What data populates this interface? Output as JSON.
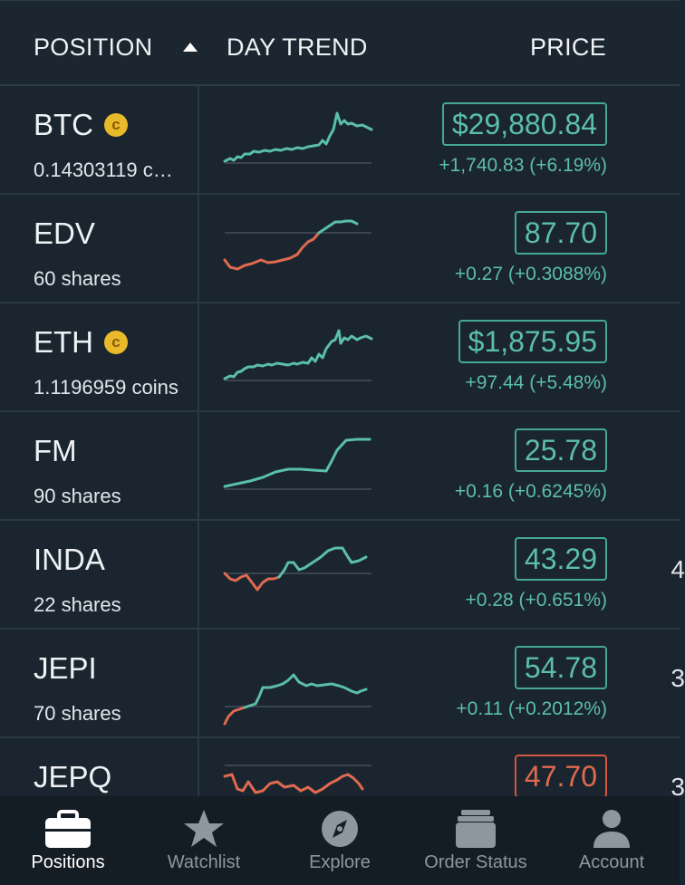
{
  "header": {
    "position_label": "POSITION",
    "day_trend_label": "DAY TREND",
    "price_label": "PRICE"
  },
  "colors": {
    "positive": "#5bbfa8",
    "negative": "#e06a4f",
    "background": "#1b2530",
    "coin_badge": "#e9b92c"
  },
  "positions": [
    {
      "symbol": "BTC",
      "subtitle": "0.14303119 c…",
      "crypto": true,
      "coin_glyph": "c",
      "price": "$29,880.84",
      "change": "+1,740.83 (+6.19%)",
      "direction": "up",
      "edge_text": ""
    },
    {
      "symbol": "EDV",
      "subtitle": "60 shares",
      "crypto": false,
      "price": "87.70",
      "change": "+0.27 (+0.3088%)",
      "direction": "up",
      "edge_text": ""
    },
    {
      "symbol": "ETH",
      "subtitle": "1.1196959 coins",
      "crypto": true,
      "coin_glyph": "c",
      "price": "$1,875.95",
      "change": "+97.44 (+5.48%)",
      "direction": "up",
      "edge_text": ""
    },
    {
      "symbol": "FM",
      "subtitle": "90 shares",
      "crypto": false,
      "price": "25.78",
      "change": "+0.16 (+0.6245%)",
      "direction": "up",
      "edge_text": ""
    },
    {
      "symbol": "INDA",
      "subtitle": "22 shares",
      "crypto": false,
      "price": "43.29",
      "change": "+0.28 (+0.651%)",
      "direction": "up",
      "edge_text": "4"
    },
    {
      "symbol": "JEPI",
      "subtitle": "70 shares",
      "crypto": false,
      "price": "54.78",
      "change": "+0.11 (+0.2012%)",
      "direction": "up",
      "edge_text": "3"
    },
    {
      "symbol": "JEPQ",
      "subtitle": "",
      "crypto": false,
      "price": "47.70",
      "change": "",
      "direction": "down",
      "edge_text": "3"
    }
  ],
  "tabs": [
    {
      "label": "Positions",
      "icon": "briefcase-icon",
      "active": true
    },
    {
      "label": "Watchlist",
      "icon": "star-icon",
      "active": false
    },
    {
      "label": "Explore",
      "icon": "compass-icon",
      "active": false
    },
    {
      "label": "Order Status",
      "icon": "stack-icon",
      "active": false
    },
    {
      "label": "Account",
      "icon": "person-icon",
      "active": false
    }
  ]
}
